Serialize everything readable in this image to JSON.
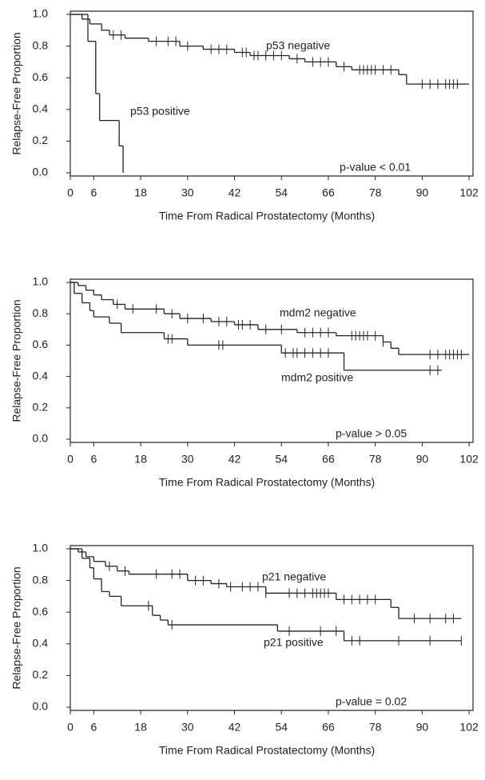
{
  "chart_data": [
    {
      "type": "km-step",
      "x_label": "Time From Radical Prostatectomy (Months)",
      "y_label": "Relapse-Free Proportion",
      "annotation": "p-value < 0.01",
      "xlim": [
        0,
        103
      ],
      "ylim": [
        0,
        1
      ],
      "xticks": [
        0,
        6,
        18,
        30,
        42,
        54,
        66,
        78,
        90,
        102
      ],
      "yticks": [
        {
          "value": 0,
          "label": "0.0"
        },
        {
          "value": 0.2,
          "label": "0.2"
        },
        {
          "value": 0.4,
          "label": "0.4"
        },
        {
          "value": 0.6,
          "label": "0.6"
        },
        {
          "value": 0.8,
          "label": "0.8"
        },
        {
          "value": 1,
          "label": "1.0"
        }
      ],
      "series": [
        {
          "name": "p53 negative",
          "color": "#222222",
          "x": [
            0,
            3,
            5,
            8,
            10,
            14,
            20,
            28,
            34,
            42,
            46,
            56,
            60,
            68,
            72,
            84,
            86,
            102
          ],
          "values": [
            1.0,
            0.97,
            0.94,
            0.9,
            0.87,
            0.85,
            0.83,
            0.8,
            0.78,
            0.76,
            0.74,
            0.72,
            0.7,
            0.67,
            0.65,
            0.62,
            0.56,
            0.56
          ],
          "censored": {
            "x": [
              11,
              13,
              22,
              25,
              27,
              30,
              36,
              38,
              40,
              44,
              45,
              47,
              48,
              50,
              52,
              54,
              58,
              62,
              64,
              66,
              70,
              74,
              75,
              76,
              77,
              78,
              80,
              82,
              90,
              92,
              94,
              96,
              97,
              98,
              99
            ],
            "values": [
              0.87,
              0.87,
              0.83,
              0.83,
              0.83,
              0.8,
              0.78,
              0.78,
              0.78,
              0.76,
              0.76,
              0.74,
              0.74,
              0.74,
              0.74,
              0.74,
              0.72,
              0.7,
              0.7,
              0.7,
              0.67,
              0.65,
              0.65,
              0.65,
              0.65,
              0.65,
              0.65,
              0.65,
              0.56,
              0.56,
              0.56,
              0.56,
              0.56,
              0.56,
              0.56
            ]
          }
        },
        {
          "name": "p53 positive",
          "color": "#222222",
          "x": [
            0,
            4.5,
            6.5,
            7.5,
            12.5,
            13.5
          ],
          "values": [
            1.0,
            0.83,
            0.5,
            0.33,
            0.17,
            0.0
          ]
        }
      ]
    },
    {
      "type": "km-step",
      "x_label": "Time From Radical Prostatectomy (Months)",
      "y_label": "Relapse-Free Proportion",
      "annotation": "p-value > 0.05",
      "xlim": [
        0,
        103
      ],
      "ylim": [
        0,
        1
      ],
      "xticks": [
        0,
        6,
        18,
        30,
        42,
        54,
        66,
        78,
        90,
        102
      ],
      "yticks": [
        {
          "value": 0,
          "label": "0.0"
        },
        {
          "value": 0.2,
          "label": "0.2"
        },
        {
          "value": 0.4,
          "label": "0.4"
        },
        {
          "value": 0.6,
          "label": "0.6"
        },
        {
          "value": 0.8,
          "label": "0.8"
        },
        {
          "value": 1,
          "label": "1.0"
        }
      ],
      "series": [
        {
          "name": "mdm2 negative",
          "color": "#222222",
          "x": [
            0,
            2,
            4,
            6,
            8,
            11,
            14,
            24,
            28,
            36,
            42,
            48,
            58,
            68,
            80,
            82,
            84,
            102
          ],
          "values": [
            1.0,
            0.98,
            0.95,
            0.92,
            0.89,
            0.86,
            0.83,
            0.8,
            0.77,
            0.75,
            0.73,
            0.7,
            0.68,
            0.66,
            0.62,
            0.58,
            0.54,
            0.54
          ],
          "censored": {
            "x": [
              12,
              16,
              22,
              26,
              30,
              34,
              38,
              40,
              43,
              44,
              46,
              50,
              54,
              60,
              62,
              64,
              66,
              72,
              73,
              74,
              75,
              76,
              78,
              80,
              92,
              94,
              96,
              97,
              98,
              99,
              100
            ],
            "values": [
              0.86,
              0.83,
              0.83,
              0.8,
              0.77,
              0.77,
              0.75,
              0.75,
              0.73,
              0.73,
              0.73,
              0.7,
              0.7,
              0.68,
              0.68,
              0.68,
              0.68,
              0.66,
              0.66,
              0.66,
              0.66,
              0.66,
              0.66,
              0.62,
              0.54,
              0.54,
              0.54,
              0.54,
              0.54,
              0.54,
              0.54
            ]
          }
        },
        {
          "name": "mdm2 positive",
          "color": "#222222",
          "x": [
            0,
            1,
            3,
            5,
            6,
            10,
            13,
            24,
            30,
            54,
            70,
            95
          ],
          "values": [
            1.0,
            0.93,
            0.87,
            0.82,
            0.78,
            0.74,
            0.68,
            0.64,
            0.6,
            0.55,
            0.44,
            0.44
          ],
          "censored": {
            "x": [
              25,
              26,
              38,
              39,
              55,
              57,
              58,
              60,
              62,
              64,
              66,
              92,
              94
            ],
            "values": [
              0.64,
              0.64,
              0.6,
              0.6,
              0.55,
              0.55,
              0.55,
              0.55,
              0.55,
              0.55,
              0.55,
              0.44,
              0.44
            ]
          }
        }
      ]
    },
    {
      "type": "km-step",
      "x_label": "Time From Radical Prostatectomy (Months)",
      "y_label": "Relapse-Free Proportion",
      "annotation": "p-value = 0.02",
      "xlim": [
        0,
        103
      ],
      "ylim": [
        0,
        1
      ],
      "xticks": [
        0,
        6,
        18,
        30,
        42,
        54,
        66,
        78,
        90,
        102
      ],
      "yticks": [
        {
          "value": 0,
          "label": "0.0"
        },
        {
          "value": 0.2,
          "label": "0.2"
        },
        {
          "value": 0.4,
          "label": "0.4"
        },
        {
          "value": 0.6,
          "label": "0.6"
        },
        {
          "value": 0.8,
          "label": "0.8"
        },
        {
          "value": 1,
          "label": "1.0"
        }
      ],
      "series": [
        {
          "name": "p21 negative",
          "color": "#222222",
          "x": [
            0,
            2,
            4,
            6,
            9,
            12,
            15,
            30,
            36,
            40,
            50,
            68,
            82,
            84,
            100
          ],
          "values": [
            1.0,
            0.98,
            0.95,
            0.92,
            0.89,
            0.86,
            0.84,
            0.8,
            0.78,
            0.76,
            0.72,
            0.68,
            0.63,
            0.56,
            0.56
          ],
          "censored": {
            "x": [
              10,
              14,
              22,
              26,
              28,
              32,
              34,
              38,
              41,
              44,
              46,
              48,
              50,
              56,
              58,
              60,
              62,
              63,
              64,
              65,
              66,
              70,
              72,
              74,
              76,
              78,
              88,
              92,
              96,
              98
            ],
            "values": [
              0.89,
              0.86,
              0.84,
              0.84,
              0.84,
              0.8,
              0.8,
              0.78,
              0.76,
              0.76,
              0.76,
              0.76,
              0.72,
              0.72,
              0.72,
              0.72,
              0.72,
              0.72,
              0.72,
              0.72,
              0.72,
              0.68,
              0.68,
              0.68,
              0.68,
              0.68,
              0.56,
              0.56,
              0.56,
              0.56
            ]
          }
        },
        {
          "name": "p21 positive",
          "color": "#222222",
          "x": [
            0,
            3,
            5,
            6,
            8,
            10,
            13,
            21,
            23,
            25,
            53,
            70,
            100
          ],
          "values": [
            1.0,
            0.94,
            0.88,
            0.81,
            0.73,
            0.7,
            0.64,
            0.58,
            0.55,
            0.52,
            0.48,
            0.42,
            0.42
          ],
          "censored": {
            "x": [
              20,
              26,
              56,
              64,
              68,
              72,
              74,
              84,
              92,
              100
            ],
            "values": [
              0.64,
              0.52,
              0.48,
              0.48,
              0.48,
              0.42,
              0.42,
              0.42,
              0.42,
              0.42
            ]
          }
        }
      ]
    }
  ]
}
